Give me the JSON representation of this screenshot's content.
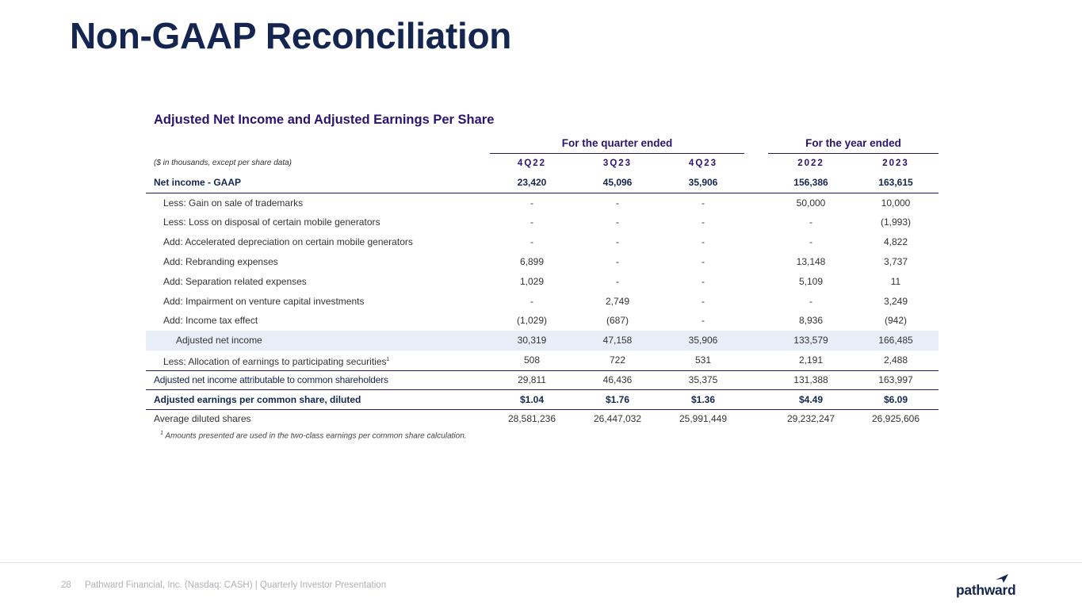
{
  "page": {
    "title": "Non-GAAP Reconciliation",
    "page_number": "28",
    "footer_text": "Pathward Financial, Inc. (Nasdaq: CASH) | Quarterly Investor Presentation",
    "logo_text": "pathward",
    "brand_color": "#14254f",
    "accent_color": "#2a1470"
  },
  "table": {
    "title": "Adjusted Net Income and Adjusted Earnings Per Share",
    "group_quarter": "For the quarter ended",
    "group_year": "For the year ended",
    "units_note": "($ in thousands, except per share data)",
    "columns": [
      "4Q22",
      "3Q23",
      "4Q23",
      "2022",
      "2023"
    ],
    "rows": [
      {
        "label": "Net income - GAAP",
        "values": [
          "23,420",
          "45,096",
          "35,906",
          "156,386",
          "163,615"
        ]
      },
      {
        "label": "Less: Gain on sale of trademarks",
        "values": [
          "-",
          "-",
          "-",
          "50,000",
          "10,000"
        ]
      },
      {
        "label": "Less: Loss on disposal of certain mobile generators",
        "values": [
          "-",
          "-",
          "-",
          "-",
          "(1,993)"
        ]
      },
      {
        "label": "Add: Accelerated depreciation on certain mobile generators",
        "values": [
          "-",
          "-",
          "-",
          "-",
          "4,822"
        ]
      },
      {
        "label": "Add: Rebranding expenses",
        "values": [
          "6,899",
          "-",
          "-",
          "13,148",
          "3,737"
        ]
      },
      {
        "label": "Add: Separation related expenses",
        "values": [
          "1,029",
          "-",
          "-",
          "5,109",
          "11"
        ]
      },
      {
        "label": "Add: Impairment on venture capital investments",
        "values": [
          "-",
          "2,749",
          "-",
          "-",
          "3,249"
        ]
      },
      {
        "label": "Add: Income tax effect",
        "values": [
          "(1,029)",
          "(687)",
          "-",
          "8,936",
          "(942)"
        ]
      },
      {
        "label": "Adjusted net income",
        "values": [
          "30,319",
          "47,158",
          "35,906",
          "133,579",
          "166,485"
        ]
      },
      {
        "label": "Less: Allocation of earnings to participating securities",
        "sup": "1",
        "values": [
          "508",
          "722",
          "531",
          "2,191",
          "2,488"
        ]
      },
      {
        "label": "Adjusted net income attributable to common shareholders",
        "values": [
          "29,811",
          "46,436",
          "35,375",
          "131,388",
          "163,997"
        ]
      },
      {
        "label": "Adjusted earnings per common share, diluted",
        "values": [
          "$1.04",
          "$1.76",
          "$1.36",
          "$4.49",
          "$6.09"
        ]
      },
      {
        "label": "Average diluted shares",
        "values": [
          "28,581,236",
          "26,447,032",
          "25,991,449",
          "29,232,247",
          "26,925,606"
        ]
      }
    ],
    "footnote_marker": "1",
    "footnote": "Amounts presented are used in the two-class earnings per common share calculation."
  }
}
